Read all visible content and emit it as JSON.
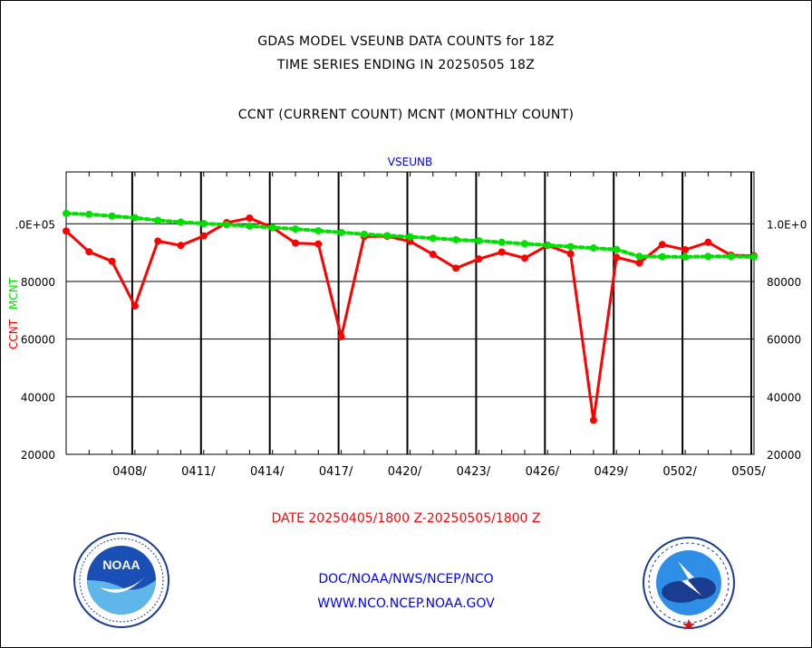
{
  "titles": {
    "line1": "GDAS MODEL VSEUNB DATA COUNTS for 18Z",
    "line2": "TIME SERIES ENDING IN 20250505 18Z",
    "line3": "CCNT (CURRENT COUNT) MCNT (MONTHLY COUNT)"
  },
  "footer": {
    "date_range": "DATE 20250405/1800 Z-20250505/1800 Z",
    "org": "DOC/NOAA/NWS/NCEP/NCO",
    "url": "WWW.NCO.NCEP.NOAA.GOV"
  },
  "logos": {
    "left_icon": "noaa-logo",
    "left_text": "NOAA",
    "right_icon": "national-weather-service-logo"
  },
  "colors": {
    "ccnt": "#ff0000",
    "mcnt": "#00e000",
    "panel_title": "#0000ff"
  },
  "chart_data": {
    "type": "line",
    "panel_title": "VSEUNB",
    "left_axis_labels": {
      "ccnt": "CCNT",
      "mcnt": "MCNT"
    },
    "ylim": [
      20000,
      118000
    ],
    "yticks": [
      {
        "value": 20000,
        "left": "20000",
        "right": "20000"
      },
      {
        "value": 40000,
        "left": "40000",
        "right": "40000"
      },
      {
        "value": 60000,
        "left": "60000",
        "right": "60000"
      },
      {
        "value": 80000,
        "left": "80000",
        "right": "80000"
      },
      {
        "value": 100000,
        "left": ".0E+05",
        "right": "1.0E+0"
      }
    ],
    "xlim": [
      0,
      30
    ],
    "xticks": [
      {
        "day": 3,
        "label": "0408/"
      },
      {
        "day": 6,
        "label": "0411/"
      },
      {
        "day": 9,
        "label": "0414/"
      },
      {
        "day": 12,
        "label": "0417/"
      },
      {
        "day": 15,
        "label": "0420/"
      },
      {
        "day": 18,
        "label": "0423/"
      },
      {
        "day": 21,
        "label": "0426/"
      },
      {
        "day": 24,
        "label": "0429/"
      },
      {
        "day": 27,
        "label": "0502/"
      },
      {
        "day": 30,
        "label": "0505/"
      }
    ],
    "grid": true,
    "series": [
      {
        "name": "CCNT",
        "style": "solid",
        "x": [
          0,
          1,
          2,
          3,
          4,
          5,
          6,
          7,
          8,
          9,
          10,
          11,
          12,
          13,
          14,
          15,
          16,
          17,
          18,
          19,
          20,
          21,
          22,
          23,
          24,
          25,
          26,
          27,
          28,
          29,
          30
        ],
        "values": [
          97500,
          90300,
          87000,
          71500,
          94000,
          92500,
          95800,
          100400,
          102000,
          98700,
          93300,
          93000,
          60800,
          95600,
          95700,
          93900,
          89400,
          84600,
          87800,
          90200,
          88100,
          92500,
          89600,
          31800,
          88400,
          86400,
          92800,
          91000,
          93600,
          89100,
          88900
        ]
      },
      {
        "name": "MCNT",
        "style": "dotted",
        "x": [
          0,
          1,
          2,
          3,
          4,
          5,
          6,
          7,
          8,
          9,
          10,
          11,
          12,
          13,
          14,
          15,
          16,
          17,
          18,
          19,
          20,
          21,
          22,
          23,
          24,
          25,
          26,
          27,
          28,
          29,
          30
        ],
        "values": [
          103600,
          103300,
          102700,
          102100,
          101200,
          100600,
          100100,
          99700,
          99200,
          98700,
          98200,
          97600,
          97000,
          96400,
          95900,
          95500,
          95000,
          94500,
          94100,
          93600,
          93100,
          92600,
          92100,
          91600,
          91100,
          88700,
          88600,
          88500,
          88700,
          88700,
          88500
        ]
      }
    ]
  }
}
